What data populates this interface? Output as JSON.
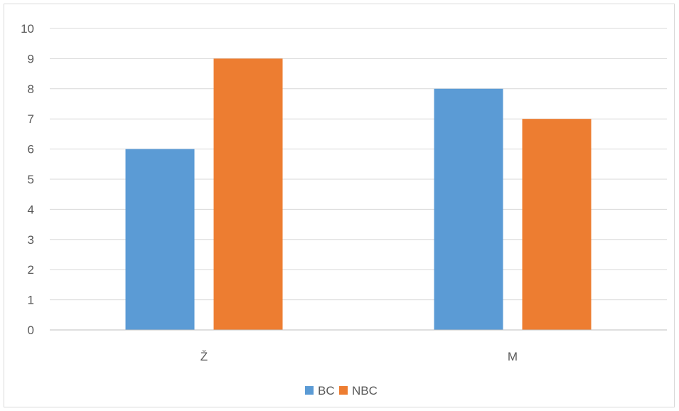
{
  "chart_data": {
    "type": "bar",
    "categories": [
      "Ž",
      "M"
    ],
    "series": [
      {
        "name": "BC",
        "values": [
          6,
          8
        ],
        "color": "#5b9bd5"
      },
      {
        "name": "NBC",
        "values": [
          9,
          7
        ],
        "color": "#ed7d31"
      }
    ],
    "yticks": [
      "0",
      "1",
      "2",
      "3",
      "4",
      "5",
      "6",
      "7",
      "8",
      "9",
      "10"
    ],
    "ylim": [
      0,
      10
    ],
    "grid": true,
    "legend": "bottom",
    "gridColor": "#d9d9d9",
    "axisColor": "#bfbfbf"
  }
}
